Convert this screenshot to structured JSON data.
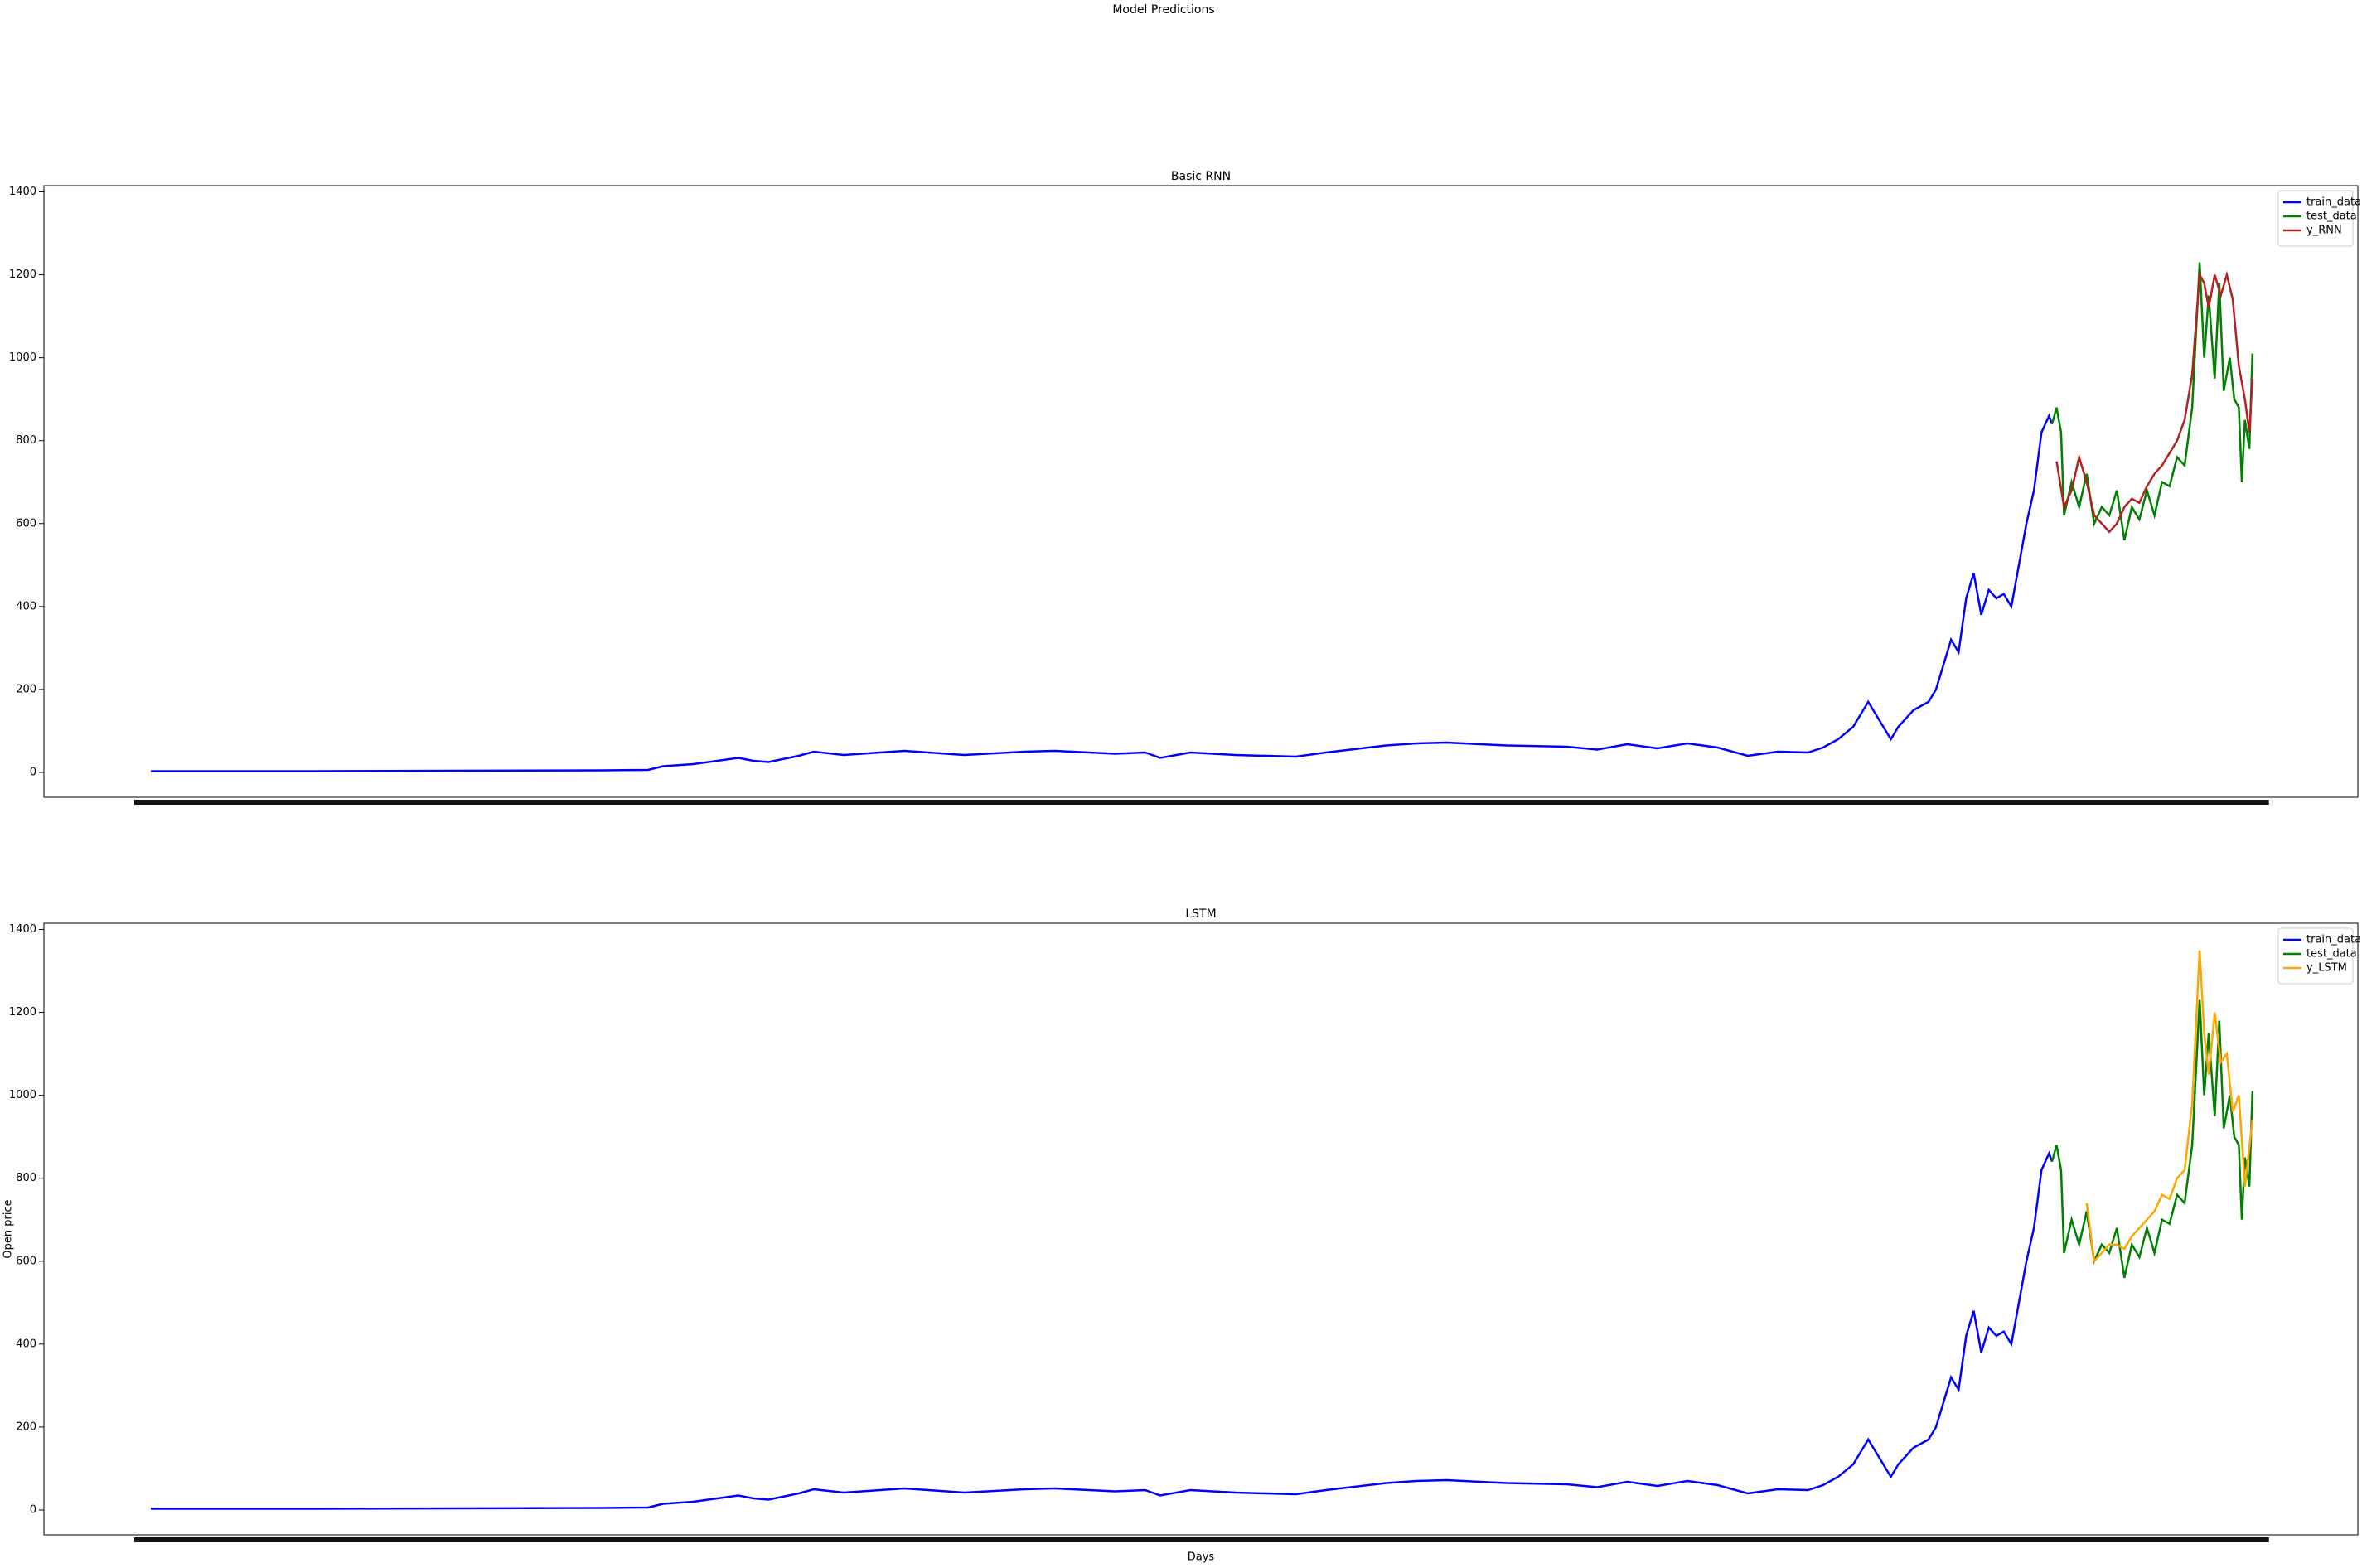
{
  "title": "Model Predictions",
  "chart_data": [
    {
      "type": "line",
      "title": "Basic RNN",
      "xlim": [
        -142,
        2930
      ],
      "ylim": [
        -60,
        1415
      ],
      "yticks": [
        0,
        200,
        400,
        600,
        800,
        1000,
        1200,
        1400
      ],
      "legend": "upper right",
      "series": [
        {
          "name": "train_data",
          "color": "#0000ff",
          "x": [
            0,
            200,
            400,
            600,
            660,
            680,
            720,
            760,
            780,
            800,
            820,
            860,
            880,
            920,
            1000,
            1080,
            1160,
            1200,
            1280,
            1320,
            1340,
            1380,
            1440,
            1520,
            1560,
            1640,
            1680,
            1720,
            1800,
            1880,
            1920,
            1960,
            2000,
            2040,
            2080,
            2120,
            2160,
            2200,
            2220,
            2240,
            2260,
            2280,
            2290,
            2310,
            2320,
            2340,
            2360,
            2370,
            2380,
            2390,
            2400,
            2410,
            2420,
            2430,
            2440,
            2450,
            2460,
            2470,
            2480,
            2490,
            2500,
            2510,
            2520,
            2524
          ],
          "values": [
            3,
            3,
            4,
            5,
            6,
            15,
            20,
            30,
            35,
            28,
            25,
            40,
            50,
            42,
            52,
            42,
            50,
            52,
            45,
            48,
            35,
            48,
            42,
            38,
            48,
            65,
            70,
            72,
            65,
            62,
            55,
            68,
            58,
            70,
            60,
            40,
            50,
            48,
            60,
            80,
            110,
            170,
            140,
            80,
            110,
            150,
            170,
            200,
            260,
            320,
            290,
            420,
            480,
            380,
            440,
            420,
            430,
            400,
            500,
            600,
            680,
            820,
            860,
            840
          ]
        },
        {
          "name": "test_data",
          "color": "#008000",
          "x": [
            2524,
            2530,
            2536,
            2540,
            2550,
            2560,
            2570,
            2580,
            2590,
            2600,
            2610,
            2620,
            2630,
            2640,
            2650,
            2660,
            2670,
            2680,
            2690,
            2700,
            2710,
            2720,
            2726,
            2732,
            2740,
            2746,
            2752,
            2760,
            2766,
            2772,
            2776,
            2780,
            2786,
            2790
          ],
          "values": [
            840,
            880,
            820,
            620,
            700,
            640,
            720,
            600,
            640,
            620,
            680,
            560,
            640,
            610,
            680,
            620,
            700,
            690,
            760,
            740,
            880,
            1230,
            1000,
            1150,
            950,
            1180,
            920,
            1000,
            900,
            880,
            700,
            850,
            780,
            1010
          ]
        },
        {
          "name": "y_RNN",
          "color": "#b22222",
          "x": [
            2530,
            2540,
            2550,
            2560,
            2570,
            2580,
            2590,
            2600,
            2610,
            2620,
            2630,
            2640,
            2650,
            2660,
            2670,
            2680,
            2690,
            2700,
            2710,
            2720,
            2726,
            2732,
            2740,
            2748,
            2756,
            2764,
            2772,
            2780,
            2786,
            2790
          ],
          "values": [
            750,
            640,
            680,
            760,
            700,
            620,
            600,
            580,
            600,
            640,
            660,
            650,
            690,
            720,
            740,
            770,
            800,
            850,
            960,
            1200,
            1180,
            1120,
            1200,
            1150,
            1200,
            1140,
            980,
            900,
            820,
            950
          ]
        }
      ]
    },
    {
      "type": "line",
      "title": "LSTM",
      "xlabel": "Days",
      "ylabel": "Open price",
      "xlim": [
        -142,
        2930
      ],
      "ylim": [
        -60,
        1415
      ],
      "yticks": [
        0,
        200,
        400,
        600,
        800,
        1000,
        1200,
        1400
      ],
      "legend": "upper right",
      "series": [
        {
          "name": "train_data",
          "color": "#0000ff",
          "x": [
            0,
            200,
            400,
            600,
            660,
            680,
            720,
            760,
            780,
            800,
            820,
            860,
            880,
            920,
            1000,
            1080,
            1160,
            1200,
            1280,
            1320,
            1340,
            1380,
            1440,
            1520,
            1560,
            1640,
            1680,
            1720,
            1800,
            1880,
            1920,
            1960,
            2000,
            2040,
            2080,
            2120,
            2160,
            2200,
            2220,
            2240,
            2260,
            2280,
            2290,
            2310,
            2320,
            2340,
            2360,
            2370,
            2380,
            2390,
            2400,
            2410,
            2420,
            2430,
            2440,
            2450,
            2460,
            2470,
            2480,
            2490,
            2500,
            2510,
            2520,
            2524
          ],
          "values": [
            3,
            3,
            4,
            5,
            6,
            15,
            20,
            30,
            35,
            28,
            25,
            40,
            50,
            42,
            52,
            42,
            50,
            52,
            45,
            48,
            35,
            48,
            42,
            38,
            48,
            65,
            70,
            72,
            65,
            62,
            55,
            68,
            58,
            70,
            60,
            40,
            50,
            48,
            60,
            80,
            110,
            170,
            140,
            80,
            110,
            150,
            170,
            200,
            260,
            320,
            290,
            420,
            480,
            380,
            440,
            420,
            430,
            400,
            500,
            600,
            680,
            820,
            860,
            840
          ]
        },
        {
          "name": "test_data",
          "color": "#008000",
          "x": [
            2524,
            2530,
            2536,
            2540,
            2550,
            2560,
            2570,
            2580,
            2590,
            2600,
            2610,
            2620,
            2630,
            2640,
            2650,
            2660,
            2670,
            2680,
            2690,
            2700,
            2710,
            2720,
            2726,
            2732,
            2740,
            2746,
            2752,
            2760,
            2766,
            2772,
            2776,
            2780,
            2786,
            2790
          ],
          "values": [
            840,
            880,
            820,
            620,
            700,
            640,
            720,
            600,
            640,
            620,
            680,
            560,
            640,
            610,
            680,
            620,
            700,
            690,
            760,
            740,
            880,
            1230,
            1000,
            1150,
            950,
            1180,
            920,
            1000,
            900,
            880,
            700,
            850,
            780,
            1010
          ]
        },
        {
          "name": "y_LSTM",
          "color": "#ffa500",
          "x": [
            2570,
            2580,
            2590,
            2600,
            2610,
            2620,
            2630,
            2640,
            2650,
            2660,
            2670,
            2680,
            2690,
            2700,
            2710,
            2720,
            2726,
            2732,
            2740,
            2748,
            2756,
            2764,
            2772,
            2780,
            2790
          ],
          "values": [
            740,
            600,
            620,
            640,
            640,
            630,
            660,
            680,
            700,
            720,
            760,
            750,
            800,
            820,
            980,
            1350,
            1150,
            1050,
            1200,
            1080,
            1100,
            960,
            1000,
            780,
            940
          ]
        }
      ]
    }
  ]
}
